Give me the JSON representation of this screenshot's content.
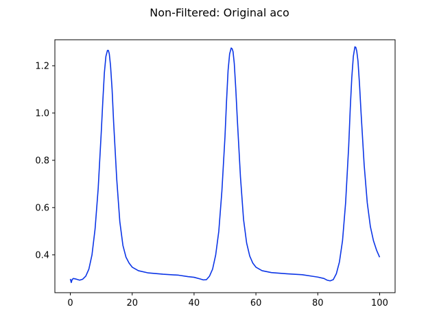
{
  "chart_data": {
    "type": "line",
    "title": "Non-Filtered: Original aco",
    "xlabel": "",
    "ylabel": "",
    "xlim": [
      -5,
      105
    ],
    "ylim": [
      0.24,
      1.31
    ],
    "xticks": [
      0,
      20,
      40,
      60,
      80,
      100
    ],
    "xtick_labels": [
      "0",
      "20",
      "40",
      "60",
      "80",
      "100"
    ],
    "yticks": [
      0.4,
      0.6,
      0.8,
      1.0,
      1.2
    ],
    "ytick_labels": [
      "0.4",
      "0.6",
      "0.8",
      "1.0",
      "1.2"
    ],
    "grid": false,
    "series": [
      {
        "color": "#0a34e6",
        "x": [
          0,
          0.3,
          0.6,
          1,
          2,
          3,
          4,
          5,
          6,
          7,
          8,
          9,
          10,
          10.5,
          11,
          11.5,
          12,
          12.3,
          12.6,
          13,
          13.5,
          14,
          15,
          16,
          17,
          18,
          19,
          20,
          22,
          25,
          30,
          35,
          38,
          40,
          42,
          43,
          44,
          45,
          46,
          47,
          48,
          49,
          50,
          50.5,
          51,
          51.5,
          52,
          52.3,
          52.6,
          53,
          53.5,
          54,
          55,
          56,
          57,
          58,
          59,
          60,
          62,
          65,
          70,
          75,
          78,
          80,
          82,
          83,
          84,
          85,
          86,
          87,
          88,
          89,
          90,
          90.5,
          91,
          91.5,
          92,
          92.3,
          92.6,
          93,
          93.5,
          94,
          95,
          96,
          97,
          98,
          99,
          100
        ],
        "y": [
          0.298,
          0.283,
          0.296,
          0.3,
          0.297,
          0.293,
          0.297,
          0.31,
          0.34,
          0.4,
          0.51,
          0.68,
          0.92,
          1.05,
          1.17,
          1.24,
          1.265,
          1.265,
          1.25,
          1.2,
          1.1,
          0.96,
          0.72,
          0.54,
          0.44,
          0.39,
          0.365,
          0.348,
          0.333,
          0.324,
          0.318,
          0.314,
          0.308,
          0.305,
          0.298,
          0.294,
          0.295,
          0.31,
          0.34,
          0.4,
          0.5,
          0.67,
          0.9,
          1.05,
          1.18,
          1.25,
          1.275,
          1.272,
          1.26,
          1.21,
          1.1,
          0.97,
          0.73,
          0.55,
          0.45,
          0.395,
          0.365,
          0.348,
          0.333,
          0.325,
          0.32,
          0.316,
          0.31,
          0.306,
          0.3,
          0.293,
          0.29,
          0.295,
          0.32,
          0.37,
          0.46,
          0.62,
          0.86,
          1.02,
          1.15,
          1.24,
          1.28,
          1.278,
          1.262,
          1.22,
          1.12,
          1.0,
          0.78,
          0.62,
          0.52,
          0.46,
          0.42,
          0.39
        ]
      }
    ]
  }
}
